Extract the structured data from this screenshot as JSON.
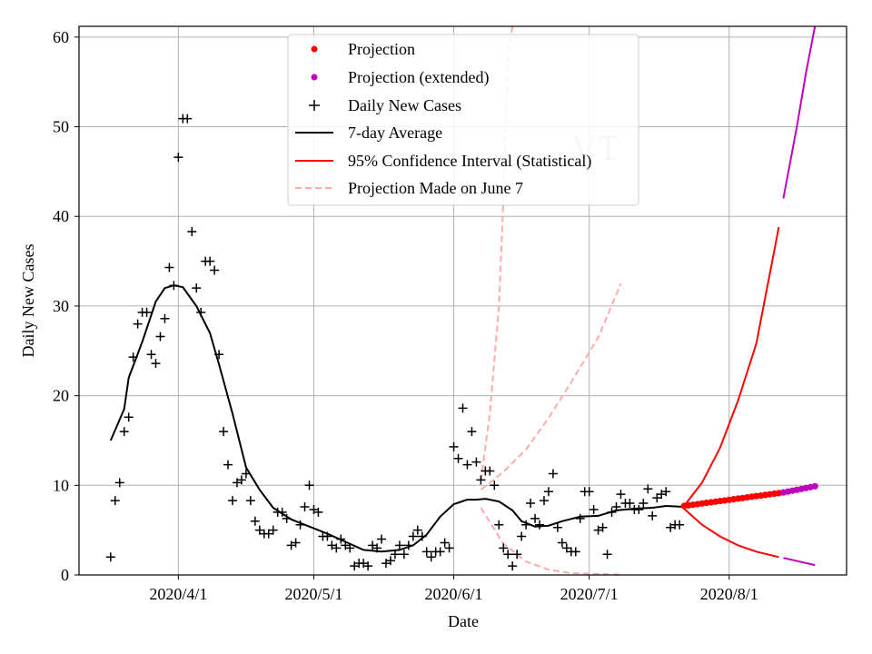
{
  "chart_data": {
    "type": "scatter",
    "title": "",
    "watermark": "VT",
    "xlabel": "Date",
    "ylabel": "Daily New Cases",
    "xlim": [
      "2020-03-10",
      "2020-08-27"
    ],
    "ylim": [
      0,
      61.2
    ],
    "grid": true,
    "legend_position": "top-center",
    "x_ticks": [
      {
        "date": "2020-04-01",
        "label": "2020/4/1"
      },
      {
        "date": "2020-05-01",
        "label": "2020/5/1"
      },
      {
        "date": "2020-06-01",
        "label": "2020/6/1"
      },
      {
        "date": "2020-07-01",
        "label": "2020/7/1"
      },
      {
        "date": "2020-08-01",
        "label": "2020/8/1"
      }
    ],
    "y_ticks": [
      0,
      10,
      20,
      30,
      40,
      50,
      60
    ],
    "colors": {
      "projection": "#ff0000",
      "projection_extended": "#bf00bf",
      "daily_cases": "#000000",
      "average": "#000000",
      "ci": "#ff0000",
      "june7": "#ffaaaa"
    },
    "series": [
      {
        "name": "Daily New Cases",
        "kind": "marker-plus",
        "points": [
          [
            "2020-03-17",
            2
          ],
          [
            "2020-03-18",
            8.3
          ],
          [
            "2020-03-19",
            10.3
          ],
          [
            "2020-03-20",
            16
          ],
          [
            "2020-03-21",
            17.6
          ],
          [
            "2020-03-22",
            24.3
          ],
          [
            "2020-03-23",
            28
          ],
          [
            "2020-03-24",
            29.3
          ],
          [
            "2020-03-25",
            29.3
          ],
          [
            "2020-03-26",
            24.6
          ],
          [
            "2020-03-27",
            23.6
          ],
          [
            "2020-03-28",
            26.6
          ],
          [
            "2020-03-29",
            28.6
          ],
          [
            "2020-03-30",
            34.3
          ],
          [
            "2020-03-31",
            32.3
          ],
          [
            "2020-04-01",
            46.6
          ],
          [
            "2020-04-02",
            50.9
          ],
          [
            "2020-04-03",
            50.9
          ],
          [
            "2020-04-04",
            38.3
          ],
          [
            "2020-04-05",
            32
          ],
          [
            "2020-04-06",
            29.3
          ],
          [
            "2020-04-07",
            35
          ],
          [
            "2020-04-08",
            35
          ],
          [
            "2020-04-09",
            34
          ],
          [
            "2020-04-10",
            24.6
          ],
          [
            "2020-04-11",
            16
          ],
          [
            "2020-04-12",
            12.3
          ],
          [
            "2020-04-13",
            8.3
          ],
          [
            "2020-04-14",
            10.3
          ],
          [
            "2020-04-15",
            10.6
          ],
          [
            "2020-04-16",
            11.3
          ],
          [
            "2020-04-17",
            8.3
          ],
          [
            "2020-04-18",
            6
          ],
          [
            "2020-04-19",
            5
          ],
          [
            "2020-04-20",
            4.6
          ],
          [
            "2020-04-21",
            4.6
          ],
          [
            "2020-04-22",
            5
          ],
          [
            "2020-04-23",
            7
          ],
          [
            "2020-04-24",
            7
          ],
          [
            "2020-04-25",
            6.3
          ],
          [
            "2020-04-26",
            3.3
          ],
          [
            "2020-04-27",
            3.6
          ],
          [
            "2020-04-28",
            5.6
          ],
          [
            "2020-04-29",
            7.6
          ],
          [
            "2020-04-30",
            10
          ],
          [
            "2020-05-01",
            7.3
          ],
          [
            "2020-05-02",
            7
          ],
          [
            "2020-05-03",
            4.3
          ],
          [
            "2020-05-04",
            4.3
          ],
          [
            "2020-05-05",
            3.3
          ],
          [
            "2020-05-06",
            3
          ],
          [
            "2020-05-07",
            4
          ],
          [
            "2020-05-08",
            3.3
          ],
          [
            "2020-05-09",
            3
          ],
          [
            "2020-05-10",
            1
          ],
          [
            "2020-05-11",
            1.3
          ],
          [
            "2020-05-12",
            1.3
          ],
          [
            "2020-05-13",
            1
          ],
          [
            "2020-05-14",
            3.3
          ],
          [
            "2020-05-15",
            3
          ],
          [
            "2020-05-16",
            4
          ],
          [
            "2020-05-17",
            1.3
          ],
          [
            "2020-05-18",
            1.6
          ],
          [
            "2020-05-19",
            2.3
          ],
          [
            "2020-05-20",
            3.3
          ],
          [
            "2020-05-21",
            2.3
          ],
          [
            "2020-05-22",
            3.3
          ],
          [
            "2020-05-23",
            4.3
          ],
          [
            "2020-05-24",
            5
          ],
          [
            "2020-05-25",
            4.3
          ],
          [
            "2020-05-26",
            2.6
          ],
          [
            "2020-05-27",
            2
          ],
          [
            "2020-05-28",
            2.6
          ],
          [
            "2020-05-29",
            2.6
          ],
          [
            "2020-05-30",
            3.6
          ],
          [
            "2020-05-31",
            3
          ],
          [
            "2020-06-01",
            14.3
          ],
          [
            "2020-06-02",
            13
          ],
          [
            "2020-06-03",
            18.6
          ],
          [
            "2020-06-04",
            12.3
          ],
          [
            "2020-06-05",
            16
          ],
          [
            "2020-06-06",
            12.6
          ],
          [
            "2020-06-07",
            10.6
          ],
          [
            "2020-06-08",
            11.6
          ],
          [
            "2020-06-09",
            11.6
          ],
          [
            "2020-06-10",
            10
          ],
          [
            "2020-06-11",
            5.6
          ],
          [
            "2020-06-12",
            3
          ],
          [
            "2020-06-13",
            2.3
          ],
          [
            "2020-06-14",
            1
          ],
          [
            "2020-06-15",
            2.3
          ],
          [
            "2020-06-16",
            4.3
          ],
          [
            "2020-06-17",
            5.6
          ],
          [
            "2020-06-18",
            8
          ],
          [
            "2020-06-19",
            6.3
          ],
          [
            "2020-06-20",
            5.6
          ],
          [
            "2020-06-21",
            8.3
          ],
          [
            "2020-06-22",
            9.3
          ],
          [
            "2020-06-23",
            11.3
          ],
          [
            "2020-06-24",
            5.3
          ],
          [
            "2020-06-25",
            3.6
          ],
          [
            "2020-06-26",
            3
          ],
          [
            "2020-06-27",
            2.6
          ],
          [
            "2020-06-28",
            2.6
          ],
          [
            "2020-06-29",
            6.3
          ],
          [
            "2020-06-30",
            9.3
          ],
          [
            "2020-07-01",
            9.3
          ],
          [
            "2020-07-02",
            7.3
          ],
          [
            "2020-07-03",
            5
          ],
          [
            "2020-07-04",
            5.3
          ],
          [
            "2020-07-05",
            2.3
          ],
          [
            "2020-07-06",
            7
          ],
          [
            "2020-07-07",
            7.6
          ],
          [
            "2020-07-08",
            9
          ],
          [
            "2020-07-09",
            8
          ],
          [
            "2020-07-10",
            8
          ],
          [
            "2020-07-11",
            7.3
          ],
          [
            "2020-07-12",
            7.3
          ],
          [
            "2020-07-13",
            8
          ],
          [
            "2020-07-14",
            9.6
          ],
          [
            "2020-07-15",
            6.6
          ],
          [
            "2020-07-16",
            8.6
          ],
          [
            "2020-07-17",
            9
          ],
          [
            "2020-07-18",
            9.3
          ],
          [
            "2020-07-19",
            5.3
          ],
          [
            "2020-07-20",
            5.6
          ],
          [
            "2020-07-21",
            5.6
          ]
        ]
      },
      {
        "name": "7-day Average",
        "kind": "line",
        "points": [
          [
            "2020-03-17",
            15
          ],
          [
            "2020-03-20",
            18.5
          ],
          [
            "2020-03-21",
            22
          ],
          [
            "2020-03-24",
            26
          ],
          [
            "2020-03-27",
            30.5
          ],
          [
            "2020-03-29",
            32
          ],
          [
            "2020-03-31",
            32.3
          ],
          [
            "2020-04-02",
            32.1
          ],
          [
            "2020-04-05",
            30
          ],
          [
            "2020-04-08",
            27
          ],
          [
            "2020-04-10",
            23.5
          ],
          [
            "2020-04-13",
            18
          ],
          [
            "2020-04-16",
            12
          ],
          [
            "2020-04-19",
            9.5
          ],
          [
            "2020-04-22",
            7.5
          ],
          [
            "2020-04-26",
            6.2
          ],
          [
            "2020-04-30",
            5.4
          ],
          [
            "2020-05-04",
            4.6
          ],
          [
            "2020-05-08",
            3.7
          ],
          [
            "2020-05-12",
            2.8
          ],
          [
            "2020-05-16",
            2.6
          ],
          [
            "2020-05-20",
            2.8
          ],
          [
            "2020-05-23",
            3.3
          ],
          [
            "2020-05-26",
            4.5
          ],
          [
            "2020-05-29",
            6.5
          ],
          [
            "2020-06-01",
            7.9
          ],
          [
            "2020-06-04",
            8.4
          ],
          [
            "2020-06-06",
            8.4
          ],
          [
            "2020-06-08",
            8.5
          ],
          [
            "2020-06-11",
            8.2
          ],
          [
            "2020-06-14",
            7.2
          ],
          [
            "2020-06-16",
            6
          ],
          [
            "2020-06-19",
            5.4
          ],
          [
            "2020-06-22",
            5.5
          ],
          [
            "2020-06-25",
            6
          ],
          [
            "2020-06-29",
            6.5
          ],
          [
            "2020-07-03",
            6.6
          ],
          [
            "2020-07-07",
            7.2
          ],
          [
            "2020-07-11",
            7.4
          ],
          [
            "2020-07-15",
            7.5
          ],
          [
            "2020-07-18",
            7.7
          ],
          [
            "2020-07-22",
            7.6
          ]
        ]
      },
      {
        "name": "Projection",
        "kind": "marker-dot",
        "start": "2020-07-22",
        "end": "2020-08-13",
        "y_start": 7.7,
        "y_end": 9.2,
        "count": 23
      },
      {
        "name": "Projection (extended)",
        "kind": "marker-dot",
        "start": "2020-08-13",
        "end": "2020-08-20",
        "y_start": 9.2,
        "y_end": 9.9,
        "count": 8
      },
      {
        "name": "95% Confidence Interval (Statistical)",
        "kind": "band-lines",
        "upper": [
          [
            "2020-07-22",
            7.7
          ],
          [
            "2020-07-26",
            10.3
          ],
          [
            "2020-07-30",
            14.2
          ],
          [
            "2020-08-03",
            19.5
          ],
          [
            "2020-08-07",
            25.8
          ],
          [
            "2020-08-12",
            38.8
          ]
        ],
        "lower": [
          [
            "2020-07-22",
            7.4
          ],
          [
            "2020-07-26",
            5.6
          ],
          [
            "2020-07-30",
            4.3
          ],
          [
            "2020-08-03",
            3.3
          ],
          [
            "2020-08-07",
            2.6
          ],
          [
            "2020-08-12",
            2.0
          ]
        ],
        "ext_upper": [
          [
            "2020-08-13",
            42
          ],
          [
            "2020-08-16",
            50
          ],
          [
            "2020-08-18",
            56
          ],
          [
            "2020-08-20",
            61.2
          ]
        ],
        "ext_lower": [
          [
            "2020-08-13",
            1.9
          ],
          [
            "2020-08-20",
            1.1
          ]
        ]
      },
      {
        "name": "Projection Made on June 7",
        "kind": "dashed-lines",
        "upper": [
          [
            "2020-06-07",
            10.5
          ],
          [
            "2020-06-09",
            18
          ],
          [
            "2020-06-11",
            30
          ],
          [
            "2020-06-12",
            42
          ],
          [
            "2020-06-13",
            58
          ],
          [
            "2020-06-14",
            61.2
          ]
        ],
        "middle": [
          [
            "2020-06-07",
            9.5
          ],
          [
            "2020-06-12",
            11.5
          ],
          [
            "2020-06-17",
            14
          ],
          [
            "2020-06-22",
            17.5
          ],
          [
            "2020-06-27",
            21.5
          ],
          [
            "2020-07-03",
            26.5
          ],
          [
            "2020-07-08",
            32.5
          ]
        ],
        "lower": [
          [
            "2020-06-07",
            7.5
          ],
          [
            "2020-06-12",
            3.5
          ],
          [
            "2020-06-17",
            1.5
          ],
          [
            "2020-06-22",
            0.6
          ],
          [
            "2020-06-27",
            0.2
          ],
          [
            "2020-07-08",
            0.05
          ]
        ]
      }
    ]
  }
}
